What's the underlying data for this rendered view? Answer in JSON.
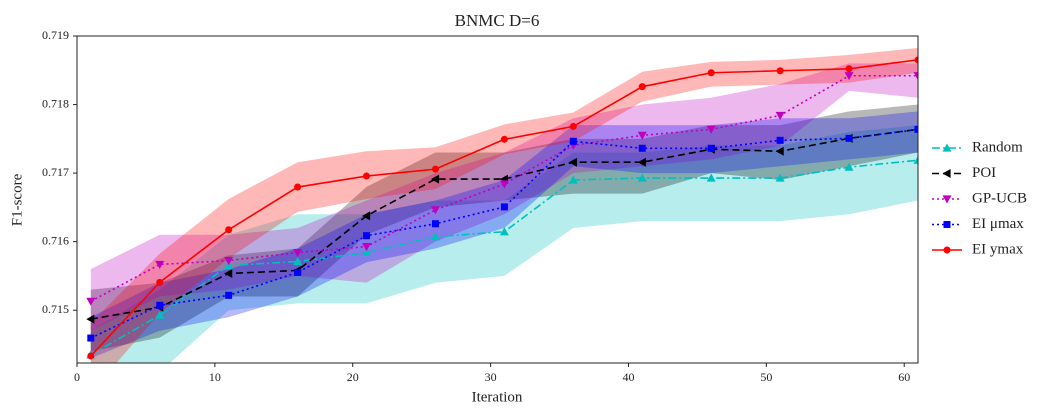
{
  "chart_data": {
    "type": "line",
    "title": "BNMC D=6",
    "x_label": "Iteration",
    "y_label": "F1-score",
    "x": [
      1,
      6,
      11,
      16,
      21,
      26,
      31,
      36,
      41,
      46,
      51,
      56,
      61
    ],
    "xlim": [
      0,
      61
    ],
    "xticks": [
      0,
      10,
      20,
      30,
      40,
      50,
      60
    ],
    "ylim": [
      0.71423,
      0.719
    ],
    "yticks": [
      0.715,
      0.716,
      0.717,
      0.718,
      0.719
    ],
    "legend": "right",
    "series": [
      {
        "name": "Random",
        "color": "#00bfbf",
        "marker": "triangle-up",
        "dash": "8,3,2,3",
        "values": [
          0.714348,
          0.714928,
          0.715652,
          0.71571,
          0.715841,
          0.716072,
          0.716145,
          0.716899,
          0.716928,
          0.716928,
          0.716928,
          0.717087,
          0.717188
        ],
        "upper": [
          0.7147,
          0.7153,
          0.7161,
          0.7164,
          0.7164,
          0.7166,
          0.7166,
          0.7173,
          0.7173,
          0.7174,
          0.7174,
          0.7176,
          0.7177
        ],
        "lower": [
          0.7138,
          0.7141,
          0.715,
          0.7151,
          0.7151,
          0.7154,
          0.7155,
          0.7162,
          0.7163,
          0.7163,
          0.7163,
          0.7164,
          0.7166
        ]
      },
      {
        "name": "POI",
        "color": "#000000",
        "marker": "triangle-left",
        "dash": "7,4",
        "values": [
          0.71487,
          0.715043,
          0.715536,
          0.71558,
          0.716377,
          0.716913,
          0.716913,
          0.717159,
          0.717159,
          0.717348,
          0.717319,
          0.717507,
          0.717638
        ],
        "upper": [
          0.7153,
          0.7154,
          0.7158,
          0.7159,
          0.7168,
          0.7173,
          0.7173,
          0.7175,
          0.7175,
          0.7177,
          0.7177,
          0.7179,
          0.718
        ],
        "lower": [
          0.7144,
          0.7146,
          0.7152,
          0.7152,
          0.7161,
          0.7165,
          0.7166,
          0.7167,
          0.7167,
          0.717,
          0.7169,
          0.7171,
          0.7173
        ]
      },
      {
        "name": "GP-UCB",
        "color": "#bf00bf",
        "marker": "triangle-down",
        "dash": "2,3",
        "values": [
          0.71513,
          0.715667,
          0.715725,
          0.715841,
          0.715928,
          0.716464,
          0.716841,
          0.717406,
          0.717551,
          0.717638,
          0.717841,
          0.71842,
          0.71842
        ],
        "upper": [
          0.7156,
          0.7161,
          0.7161,
          0.7162,
          0.7166,
          0.717,
          0.7173,
          0.7178,
          0.718,
          0.7181,
          0.7183,
          0.7186,
          0.7186
        ],
        "lower": [
          0.7147,
          0.7152,
          0.7153,
          0.7155,
          0.7154,
          0.716,
          0.7164,
          0.717,
          0.7171,
          0.7172,
          0.7174,
          0.7182,
          0.7181
        ]
      },
      {
        "name": "EI μmax",
        "color": "#0000ff",
        "marker": "square",
        "dash": "2,3",
        "values": [
          0.714594,
          0.715072,
          0.715217,
          0.715551,
          0.716087,
          0.716261,
          0.716507,
          0.717464,
          0.717362,
          0.717362,
          0.717478,
          0.717507,
          0.717638
        ],
        "upper": [
          0.7149,
          0.7154,
          0.7156,
          0.7159,
          0.7164,
          0.7166,
          0.7169,
          0.7177,
          0.7177,
          0.7177,
          0.7178,
          0.7178,
          0.7179
        ],
        "lower": [
          0.7143,
          0.7147,
          0.7149,
          0.7152,
          0.7157,
          0.7159,
          0.7162,
          0.7171,
          0.717,
          0.717,
          0.7171,
          0.7172,
          0.7173
        ]
      },
      {
        "name": "EI ymax",
        "color": "#ff0000",
        "marker": "circle",
        "dash": "none",
        "values": [
          0.714333,
          0.715406,
          0.716174,
          0.716797,
          0.716957,
          0.717058,
          0.717493,
          0.717681,
          0.718261,
          0.718464,
          0.718493,
          0.718522,
          0.718652
        ],
        "upper": [
          0.714812,
          0.715826,
          0.716623,
          0.717159,
          0.717319,
          0.717377,
          0.71771,
          0.717884,
          0.718478,
          0.718623,
          0.718652,
          0.718725,
          0.718826
        ],
        "lower": [
          0.7138,
          0.714957,
          0.715754,
          0.716435,
          0.716623,
          0.716768,
          0.717275,
          0.717464,
          0.718043,
          0.718261,
          0.71829,
          0.718319,
          0.718464
        ]
      }
    ]
  }
}
